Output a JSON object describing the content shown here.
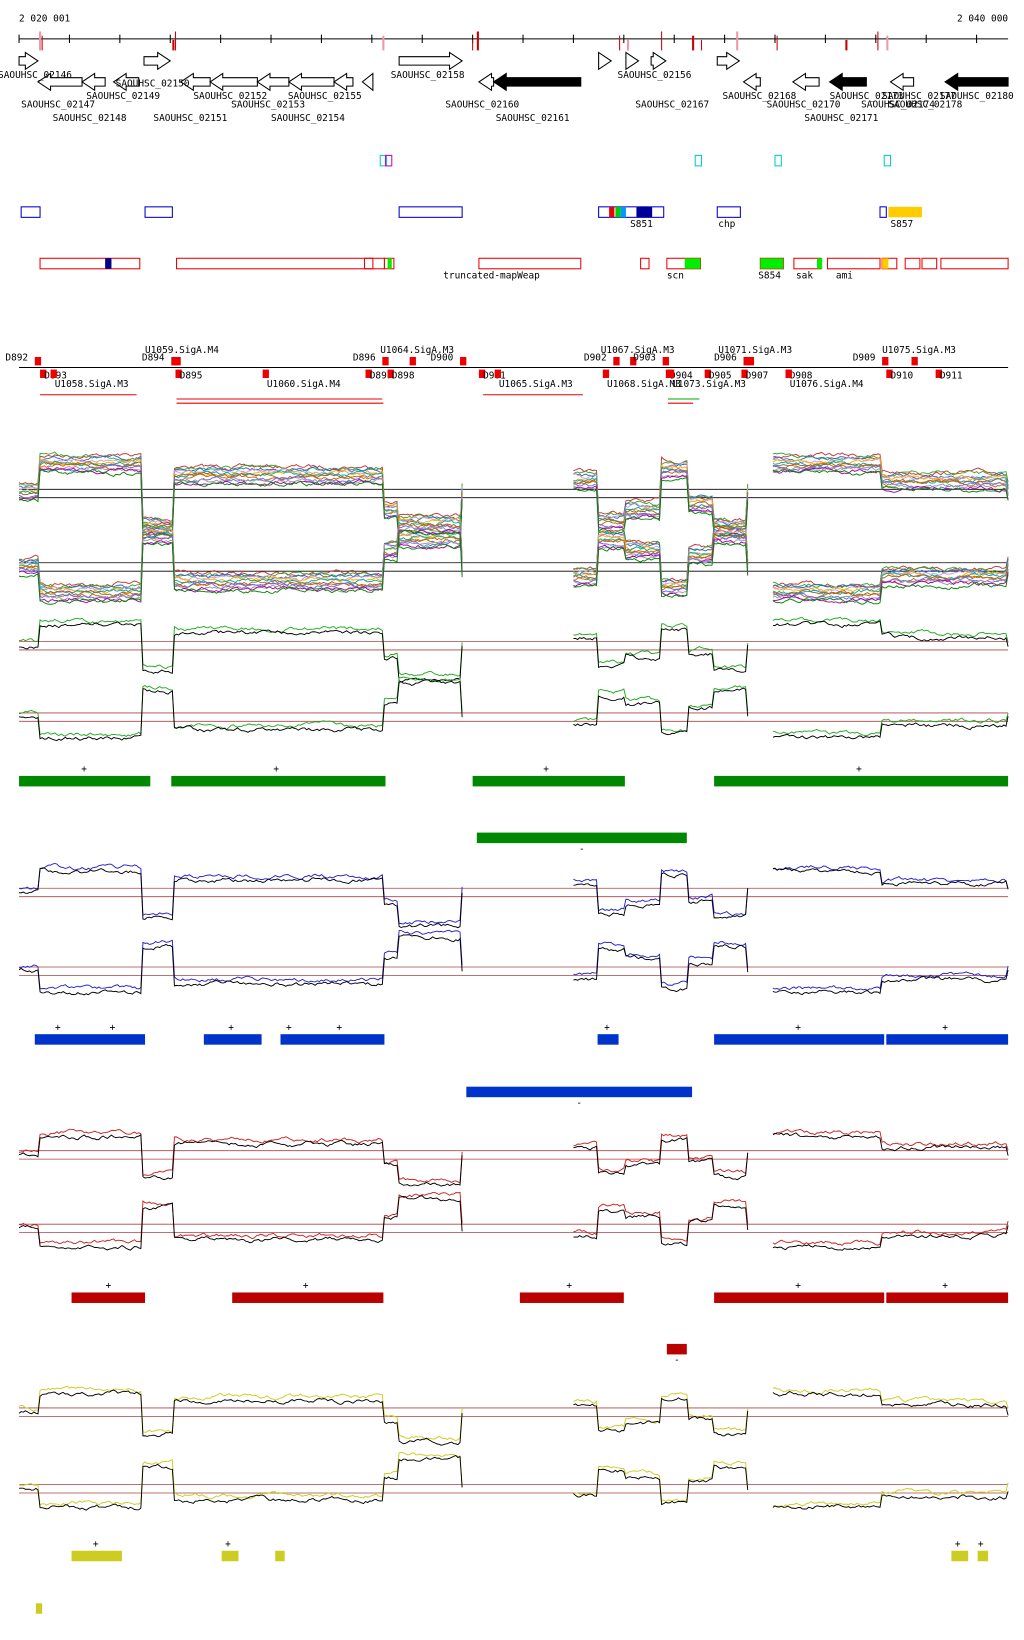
{
  "ruler": {
    "start": "2 020 001",
    "end": "2 040 000"
  },
  "genes": [
    "SAOUHSC_02146",
    "SAOUHSC_02147",
    "SAOUHSC_02148",
    "SAOUHSC_02149",
    "SAOUHSC_02150",
    "SAOUHSC_02151",
    "SAOUHSC_02152",
    "SAOUHSC_02153",
    "SAOUHSC_02154",
    "SAOUHSC_02155",
    "SAOUHSC_02158",
    "SAOUHSC_02160",
    "SAOUHSC_02161",
    "SAOUHSC_02156",
    "SAOUHSC_02167",
    "SAOUHSC_02168",
    "SAOUHSC_02170",
    "SAOUHSC_02171",
    "SAOUHSC_02173",
    "SAOUHSC_02174",
    "SAOUHSC_02177",
    "SAOUHSC_02178",
    "SAOUHSC_02180"
  ],
  "features": [
    "S851",
    "chp",
    "S857"
  ],
  "annotations": [
    "truncated-mapWeap",
    "scn",
    "S854",
    "sak",
    "ami"
  ],
  "promoters": [
    "D892",
    "D893",
    "U1058.SigA.M3",
    "U1059.SigA.M4",
    "D894",
    "D895",
    "U1060.SigA.M4",
    "D896",
    "D897",
    "U1064.SigA.M3",
    "D898",
    "D900",
    "D901",
    "U1065.SigA.M3",
    "D902",
    "U1067.SigA.M3",
    "D903",
    "U1068.SigA.M3",
    "D904",
    "D905",
    "U1073.SigA.M3",
    "D906",
    "U1071.SigA.M3",
    "D907",
    "D908",
    "U1076.SigA.M4",
    "D909",
    "U1075.SigA.M3",
    "D910",
    "D911"
  ],
  "strand_tracks": [
    {
      "plus": [
        "+",
        "+",
        "+",
        "+"
      ],
      "minus": [
        "-"
      ]
    },
    {
      "plus": [
        "+",
        "+",
        "+",
        "+",
        "+",
        "+",
        "+",
        "+"
      ],
      "minus": [
        "-"
      ]
    },
    {
      "plus": [
        "+",
        "+",
        "+",
        "+",
        "+"
      ],
      "minus": [
        "-"
      ]
    },
    {
      "plus": [
        "+",
        "+",
        "+",
        "+"
      ]
    }
  ]
}
